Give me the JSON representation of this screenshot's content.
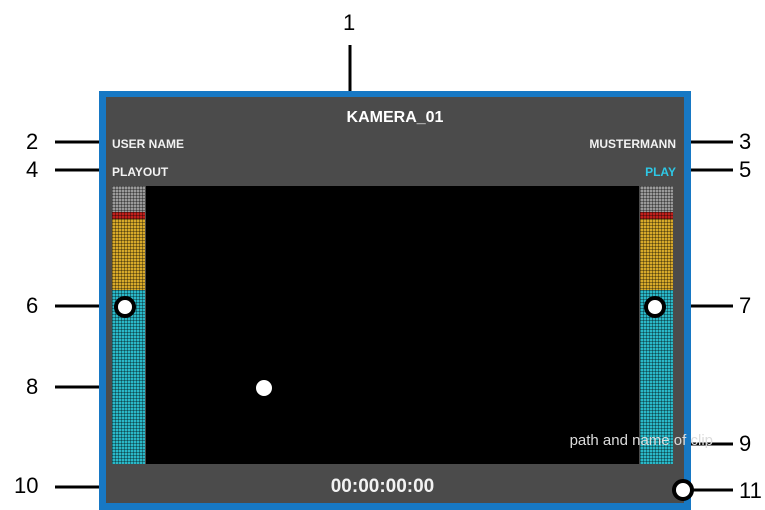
{
  "callouts": [
    "1",
    "2",
    "3",
    "4",
    "5",
    "6",
    "7",
    "8",
    "9",
    "10",
    "11"
  ],
  "monitor": {
    "title": "KAMERA_01",
    "user_label": "USER NAME",
    "user_value": "MUSTERMANN",
    "mode_label": "PLAYOUT",
    "mode_value": "PLAY",
    "clip_path": "path and name of clip",
    "timecode": "00:00:00:00"
  },
  "colors": {
    "frame": "#1778c4",
    "screen": "#4b4b4b",
    "play": "#2ec8e6",
    "meter_cyan": "#2ab8c8",
    "meter_yellow": "#d7a92a",
    "meter_red": "#c0201c",
    "meter_grey": "#9a9a9a"
  }
}
